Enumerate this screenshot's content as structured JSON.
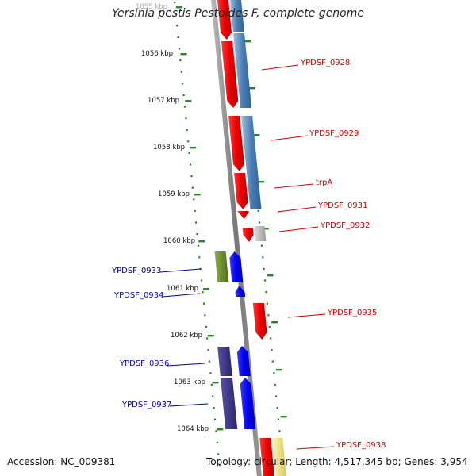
{
  "title": "Yersinia pestis Pestoides F, complete genome",
  "accession_text": "Accession: NC_009381",
  "topology_text": "Topology: circular; Length: 4,517,345 bp; Genes: 3,954",
  "colors": {
    "forward_gene": "#ee0000",
    "reverse_gene": "#0000ee",
    "label_forward": "#cc0000",
    "label_reverse": "#0000aa",
    "cds_steelblue": "#4477aa",
    "olive": "#6a8c28",
    "navy": "#3a3480",
    "gray": "#aaaaaa",
    "pale_yellow": "#eedd77",
    "tick_green": "#228822",
    "backbone": "#888888"
  },
  "ticks": [
    "1055 kbp",
    "1056 kbp",
    "1057 kbp",
    "1058 kbp",
    "1059 kbp",
    "1060 kbp",
    "1061 kbp",
    "1062 kbp",
    "1063 kbp",
    "1064 kbp"
  ],
  "genes_forward": [
    "YPDSF_0928",
    "YPDSF_0929",
    "trpA",
    "YPDSF_0931",
    "YPDSF_0932",
    "YPDSF_0935",
    "YPDSF_0938"
  ],
  "genes_reverse": [
    "YPDSF_0933",
    "YPDSF_0934",
    "YPDSF_0936",
    "YPDSF_0937"
  ]
}
